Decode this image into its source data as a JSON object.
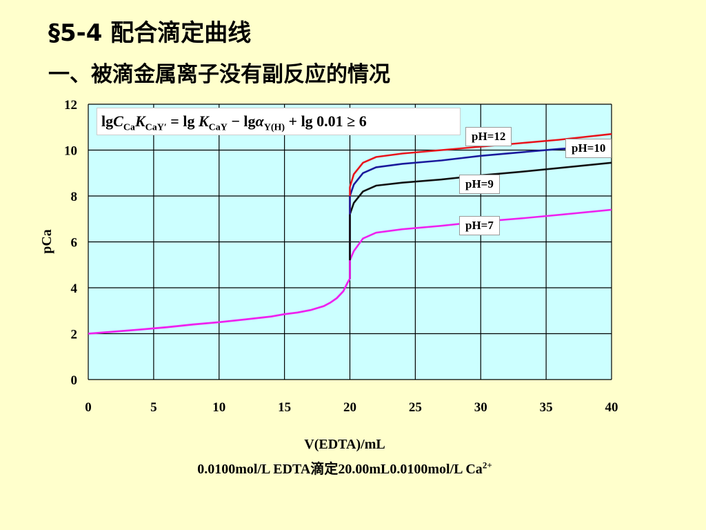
{
  "header": {
    "title": "§5-4 配合滴定曲线",
    "subtitle": "一、被滴金属离子没有副反应的情况"
  },
  "formula": {
    "lg1": "lg",
    "C": "C",
    "Ca_sub": "Ca",
    "K": "K",
    "CaYp_sub": "CaY′",
    "eq": " = lg ",
    "K2": "K",
    "CaY_sub": "CaY",
    "minus": " − lg",
    "alpha": "α",
    "YH_sub": "Y(H)",
    "tail": " + lg 0.01 ≥ 6"
  },
  "chart_data": {
    "type": "line",
    "xlabel": "V(EDTA)/mL",
    "ylabel": "pCa",
    "caption_main": "0.0100mol/L EDTA滴定20.00mL0.0100mol/L Ca",
    "caption_sup": "2+",
    "xlim": [
      0,
      40
    ],
    "ylim": [
      0,
      12
    ],
    "xticks": [
      0,
      5,
      10,
      15,
      20,
      25,
      30,
      35,
      40
    ],
    "yticks": [
      0,
      2,
      4,
      6,
      8,
      10,
      12
    ],
    "grid": true,
    "background_color": "#CCFFFF",
    "pre_equivalence": {
      "x": [
        0,
        2,
        4,
        6,
        8,
        10,
        12,
        14,
        15,
        16,
        17,
        18,
        18.5,
        19,
        19.5,
        19.8,
        20
      ],
      "y": [
        2.0,
        2.09,
        2.18,
        2.28,
        2.4,
        2.5,
        2.62,
        2.75,
        2.85,
        2.92,
        3.03,
        3.2,
        3.35,
        3.55,
        3.85,
        4.2,
        4.4
      ]
    },
    "series": [
      {
        "name": "pH=12",
        "color": "#E8141C",
        "x": [
          20,
          20.3,
          21,
          22,
          24,
          27,
          30,
          33,
          36,
          40
        ],
        "y": [
          8.4,
          8.95,
          9.45,
          9.7,
          9.85,
          10.0,
          10.15,
          10.3,
          10.45,
          10.7
        ]
      },
      {
        "name": "pH=10",
        "color": "#1A1A9C",
        "x": [
          20,
          20.3,
          21,
          22,
          24,
          27,
          30,
          33,
          36,
          40
        ],
        "y": [
          8.0,
          8.5,
          9.0,
          9.25,
          9.4,
          9.55,
          9.75,
          9.9,
          10.05,
          10.2
        ]
      },
      {
        "name": "pH=9",
        "color": "#111111",
        "x": [
          20,
          20.3,
          21,
          22,
          24,
          27,
          30,
          33,
          36,
          40
        ],
        "y": [
          7.2,
          7.7,
          8.2,
          8.45,
          8.58,
          8.72,
          8.9,
          9.05,
          9.22,
          9.45
        ]
      },
      {
        "name": "pH=7",
        "color": "#EE22EE",
        "x": [
          20,
          20.3,
          21,
          22,
          24,
          27,
          30,
          33,
          36,
          40
        ],
        "y": [
          5.2,
          5.6,
          6.15,
          6.4,
          6.55,
          6.7,
          6.88,
          7.02,
          7.18,
          7.4
        ]
      }
    ]
  }
}
